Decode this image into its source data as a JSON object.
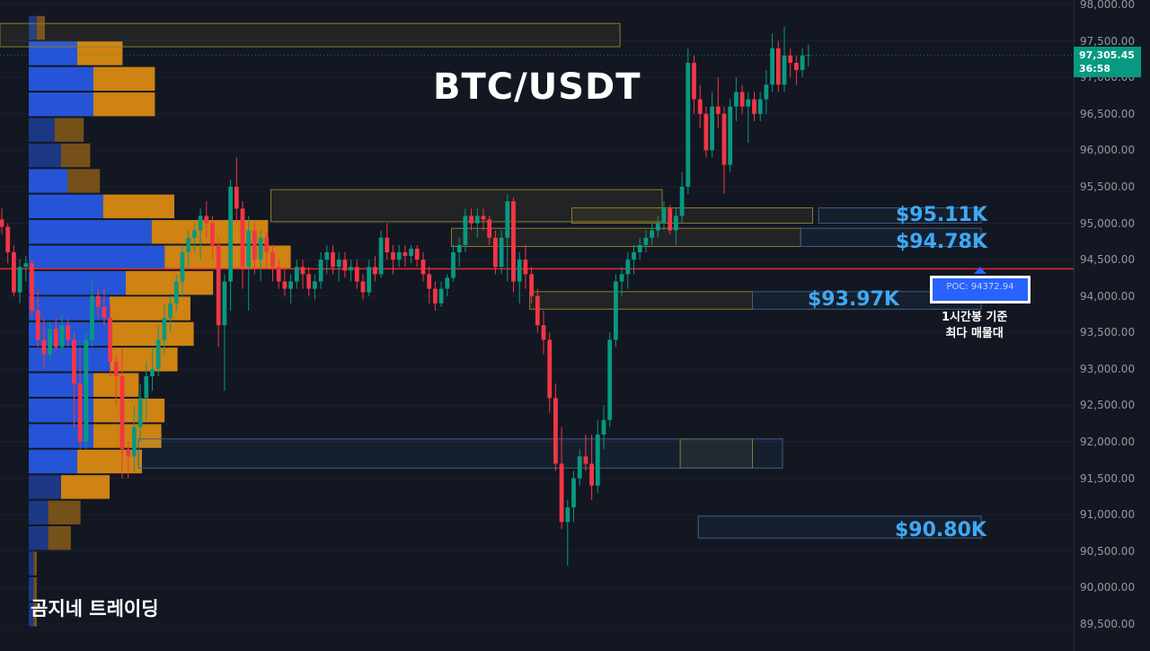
{
  "title": "BTC/USDT",
  "watermark": "곰지네 트레이딩",
  "price_tag": {
    "price": "97,305.45",
    "countdown": "36:58"
  },
  "poc": {
    "label": "POC: 94372.94",
    "note_line1": "1시간봉 기준",
    "note_line2": "최다 매물대"
  },
  "levels": [
    {
      "label": "$95.11K",
      "value": 95110
    },
    {
      "label": "$94.78K",
      "value": 94780
    },
    {
      "label": "$93.97K",
      "value": 93970
    },
    {
      "label": "$90.80K",
      "value": 90800
    }
  ],
  "colors": {
    "up": "#089981",
    "down": "#f23645",
    "poc_line": "#e0282e",
    "vp_up": "#2962ff",
    "vp_down": "#f0960f",
    "level_text": "#3fa9f5"
  },
  "chart_data": {
    "type": "candlestick",
    "yaxis_ticks": [
      "98,000.00",
      "97,500.00",
      "97,000.00",
      "96,500.00",
      "96,000.00",
      "95,500.00",
      "95,000.00",
      "94,500.00",
      "94,000.00",
      "93,500.00",
      "93,000.00",
      "92,500.00",
      "92,000.00",
      "91,500.00",
      "91,000.00",
      "90,500.00",
      "90,000.00",
      "89,500.00"
    ],
    "ylim": [
      89300,
      98000
    ],
    "poc_price": 94372.94,
    "volume_profile": [
      {
        "price": 97680,
        "up": 0.25,
        "down": 0.25
      },
      {
        "price": 97330,
        "up": 1.5,
        "down": 1.4
      },
      {
        "price": 96980,
        "up": 2.0,
        "down": 1.9
      },
      {
        "price": 96630,
        "up": 2.0,
        "down": 1.9
      },
      {
        "price": 96280,
        "up": 0.8,
        "down": 0.9
      },
      {
        "price": 95930,
        "up": 1.0,
        "down": 0.9
      },
      {
        "price": 95580,
        "up": 1.2,
        "down": 1.0
      },
      {
        "price": 95230,
        "up": 2.3,
        "down": 2.2
      },
      {
        "price": 94880,
        "up": 3.8,
        "down": 3.6
      },
      {
        "price": 94530,
        "up": 4.2,
        "down": 3.9
      },
      {
        "price": 94180,
        "up": 3.0,
        "down": 2.7
      },
      {
        "price": 93830,
        "up": 2.5,
        "down": 2.5
      },
      {
        "price": 93480,
        "up": 2.5,
        "down": 2.6
      },
      {
        "price": 93130,
        "up": 2.5,
        "down": 2.1
      },
      {
        "price": 92780,
        "up": 2.0,
        "down": 1.4
      },
      {
        "price": 92430,
        "up": 2.0,
        "down": 2.2
      },
      {
        "price": 92080,
        "up": 2.0,
        "down": 2.1
      },
      {
        "price": 91730,
        "up": 1.5,
        "down": 2.0
      },
      {
        "price": 91380,
        "up": 1.0,
        "down": 1.5
      },
      {
        "price": 91030,
        "up": 0.6,
        "down": 1.0
      },
      {
        "price": 90680,
        "up": 0.6,
        "down": 0.7
      },
      {
        "price": 90330,
        "up": 0.15,
        "down": 0.1
      },
      {
        "price": 89980,
        "up": 0.15,
        "down": 0.1
      },
      {
        "price": 89630,
        "up": 0.15,
        "down": 0.1
      }
    ],
    "zones": [
      {
        "type": "supply",
        "top": 97740,
        "bottom": 97420,
        "start": 0,
        "end": 103
      },
      {
        "type": "supply",
        "top": 95460,
        "bottom": 95020,
        "start": 45,
        "end": 110
      },
      {
        "type": "supply",
        "top": 95210,
        "bottom": 95000,
        "start": 95,
        "end": 135
      },
      {
        "type": "supply",
        "top": 94930,
        "bottom": 94680,
        "start": 75,
        "end": 133
      },
      {
        "type": "supply",
        "top": 94060,
        "bottom": 93820,
        "start": 88,
        "end": 125
      },
      {
        "type": "supply",
        "top": 92040,
        "bottom": 91640,
        "start": 113,
        "end": 125
      },
      {
        "type": "demand",
        "top": 92040,
        "bottom": 91640,
        "start": 23,
        "end": 130
      },
      {
        "type": "demand",
        "top": 95210,
        "bottom": 95000,
        "start": 136,
        "end": 163
      },
      {
        "type": "demand",
        "top": 94930,
        "bottom": 94680,
        "start": 133,
        "end": 163
      },
      {
        "type": "demand",
        "top": 94060,
        "bottom": 93820,
        "start": 125,
        "end": 163
      },
      {
        "type": "demand",
        "top": 90980,
        "bottom": 90680,
        "start": 116,
        "end": 163
      }
    ],
    "candles": [
      [
        95050,
        95200,
        94850,
        94950
      ],
      [
        94950,
        95000,
        94450,
        94600
      ],
      [
        94600,
        94700,
        94000,
        94050
      ],
      [
        94050,
        94500,
        93900,
        94400
      ],
      [
        94400,
        94550,
        94200,
        94450
      ],
      [
        94450,
        94500,
        93700,
        93800
      ],
      [
        93800,
        94100,
        93300,
        93400
      ],
      [
        93400,
        93700,
        93000,
        93200
      ],
      [
        93200,
        93650,
        93100,
        93550
      ],
      [
        93550,
        93700,
        93250,
        93300
      ],
      [
        93300,
        93750,
        93200,
        93600
      ],
      [
        93600,
        93700,
        93300,
        93400
      ],
      [
        93400,
        93500,
        92200,
        92800
      ],
      [
        92800,
        93300,
        91900,
        92000
      ],
      [
        92000,
        93500,
        91900,
        93400
      ],
      [
        93400,
        94200,
        93300,
        94000
      ],
      [
        94000,
        94100,
        93700,
        93850
      ],
      [
        93850,
        94100,
        93600,
        93700
      ],
      [
        93700,
        93900,
        92900,
        93100
      ],
      [
        93100,
        93200,
        92500,
        92900
      ],
      [
        92900,
        93300,
        91500,
        91900
      ],
      [
        91900,
        92000,
        91500,
        91800
      ],
      [
        91800,
        92500,
        91600,
        92200
      ],
      [
        92200,
        92800,
        92000,
        92600
      ],
      [
        92600,
        93100,
        92300,
        92900
      ],
      [
        92900,
        93300,
        92700,
        93000
      ],
      [
        93000,
        93600,
        92900,
        93400
      ],
      [
        93400,
        93900,
        93200,
        93700
      ],
      [
        93700,
        94000,
        93500,
        93900
      ],
      [
        93900,
        94300,
        93800,
        94200
      ],
      [
        94200,
        94700,
        94000,
        94600
      ],
      [
        94600,
        94900,
        94400,
        94800
      ],
      [
        94800,
        95000,
        94600,
        94900
      ],
      [
        94900,
        95200,
        94500,
        95100
      ],
      [
        95100,
        95300,
        94800,
        95000
      ],
      [
        95000,
        95100,
        94500,
        94700
      ],
      [
        94700,
        94800,
        93300,
        93600
      ],
      [
        93600,
        94300,
        92700,
        94200
      ],
      [
        94200,
        95600,
        93800,
        95500
      ],
      [
        95500,
        95900,
        95000,
        95200
      ],
      [
        95200,
        95300,
        94100,
        94400
      ],
      [
        94400,
        95100,
        93800,
        94900
      ],
      [
        94900,
        95000,
        94300,
        94500
      ],
      [
        94500,
        94900,
        94200,
        94800
      ],
      [
        94800,
        94900,
        94400,
        94600
      ],
      [
        94600,
        94700,
        94200,
        94400
      ],
      [
        94400,
        94500,
        94100,
        94200
      ],
      [
        94200,
        94400,
        94000,
        94100
      ],
      [
        94100,
        94300,
        93900,
        94200
      ],
      [
        94200,
        94500,
        94100,
        94400
      ],
      [
        94400,
        94500,
        94100,
        94300
      ],
      [
        94300,
        94400,
        94000,
        94100
      ],
      [
        94100,
        94300,
        93950,
        94200
      ],
      [
        94200,
        94600,
        94100,
        94500
      ],
      [
        94500,
        94700,
        94300,
        94600
      ],
      [
        94600,
        94700,
        94300,
        94400
      ],
      [
        94400,
        94600,
        94200,
        94500
      ],
      [
        94500,
        94600,
        94250,
        94350
      ],
      [
        94350,
        94500,
        94200,
        94400
      ],
      [
        94400,
        94500,
        94100,
        94200
      ],
      [
        94200,
        94300,
        93950,
        94050
      ],
      [
        94050,
        94500,
        94000,
        94400
      ],
      [
        94400,
        94550,
        94200,
        94300
      ],
      [
        94300,
        94900,
        94250,
        94800
      ],
      [
        94800,
        95000,
        94500,
        94600
      ],
      [
        94600,
        94700,
        94300,
        94500
      ],
      [
        94500,
        94700,
        94400,
        94600
      ],
      [
        94600,
        94700,
        94400,
        94550
      ],
      [
        94550,
        94700,
        94450,
        94650
      ],
      [
        94650,
        94700,
        94400,
        94500
      ],
      [
        94500,
        94600,
        94200,
        94300
      ],
      [
        94300,
        94400,
        93900,
        94100
      ],
      [
        94100,
        94200,
        93800,
        93900
      ],
      [
        93900,
        94200,
        93850,
        94100
      ],
      [
        94100,
        94300,
        94000,
        94250
      ],
      [
        94250,
        94700,
        94200,
        94600
      ],
      [
        94600,
        94800,
        94400,
        94700
      ],
      [
        94700,
        95200,
        94600,
        95100
      ],
      [
        95100,
        95200,
        94900,
        95000
      ],
      [
        95000,
        95200,
        94800,
        95100
      ],
      [
        95100,
        95200,
        94900,
        95050
      ],
      [
        95050,
        95100,
        94700,
        94800
      ],
      [
        94800,
        94900,
        94300,
        94400
      ],
      [
        94400,
        94900,
        94300,
        94800
      ],
      [
        94800,
        95400,
        94200,
        95300
      ],
      [
        95300,
        95350,
        94050,
        94200
      ],
      [
        94200,
        94600,
        93900,
        94500
      ],
      [
        94500,
        94700,
        94100,
        94300
      ],
      [
        94300,
        94400,
        93900,
        94000
      ],
      [
        94000,
        94100,
        93500,
        93600
      ],
      [
        93600,
        93800,
        93200,
        93400
      ],
      [
        93400,
        93500,
        92400,
        92600
      ],
      [
        92600,
        92800,
        91600,
        91700
      ],
      [
        91700,
        92200,
        90800,
        90900
      ],
      [
        90900,
        91200,
        90300,
        91100
      ],
      [
        91100,
        91600,
        90900,
        91500
      ],
      [
        91500,
        91900,
        91400,
        91800
      ],
      [
        91800,
        92100,
        91600,
        91700
      ],
      [
        91700,
        92100,
        91200,
        91400
      ],
      [
        91400,
        92300,
        91300,
        92100
      ],
      [
        92100,
        92500,
        91900,
        92300
      ],
      [
        92300,
        93500,
        92200,
        93400
      ],
      [
        93400,
        94300,
        93300,
        94200
      ],
      [
        94200,
        94400,
        94000,
        94300
      ],
      [
        94300,
        94600,
        94100,
        94500
      ],
      [
        94500,
        94700,
        94300,
        94600
      ],
      [
        94600,
        94800,
        94500,
        94700
      ],
      [
        94700,
        94900,
        94600,
        94800
      ],
      [
        94800,
        95000,
        94700,
        94900
      ],
      [
        94900,
        95100,
        94800,
        95000
      ],
      [
        95000,
        95300,
        94900,
        95200
      ],
      [
        95200,
        95250,
        94850,
        94900
      ],
      [
        94900,
        95200,
        94700,
        95100
      ],
      [
        95100,
        95700,
        95000,
        95500
      ],
      [
        95500,
        97400,
        95400,
        97200
      ],
      [
        97200,
        97300,
        96500,
        96700
      ],
      [
        96700,
        96900,
        96300,
        96500
      ],
      [
        96500,
        96600,
        95900,
        96000
      ],
      [
        96000,
        96800,
        95900,
        96600
      ],
      [
        96600,
        97000,
        96300,
        96500
      ],
      [
        96500,
        96600,
        95400,
        95800
      ],
      [
        95800,
        96700,
        95700,
        96600
      ],
      [
        96600,
        97000,
        96400,
        96800
      ],
      [
        96800,
        96900,
        96500,
        96600
      ],
      [
        96600,
        96800,
        96100,
        96700
      ],
      [
        96700,
        96800,
        96400,
        96500
      ],
      [
        96500,
        96800,
        96400,
        96700
      ],
      [
        96700,
        97100,
        96500,
        96900
      ],
      [
        96900,
        97600,
        96800,
        97400
      ],
      [
        97400,
        97500,
        96800,
        96900
      ],
      [
        96900,
        97700,
        96800,
        97300
      ],
      [
        97300,
        97400,
        97000,
        97200
      ],
      [
        97200,
        97300,
        96900,
        97100
      ],
      [
        97100,
        97400,
        97000,
        97300
      ],
      [
        97300,
        97450,
        97150,
        97305
      ]
    ]
  }
}
